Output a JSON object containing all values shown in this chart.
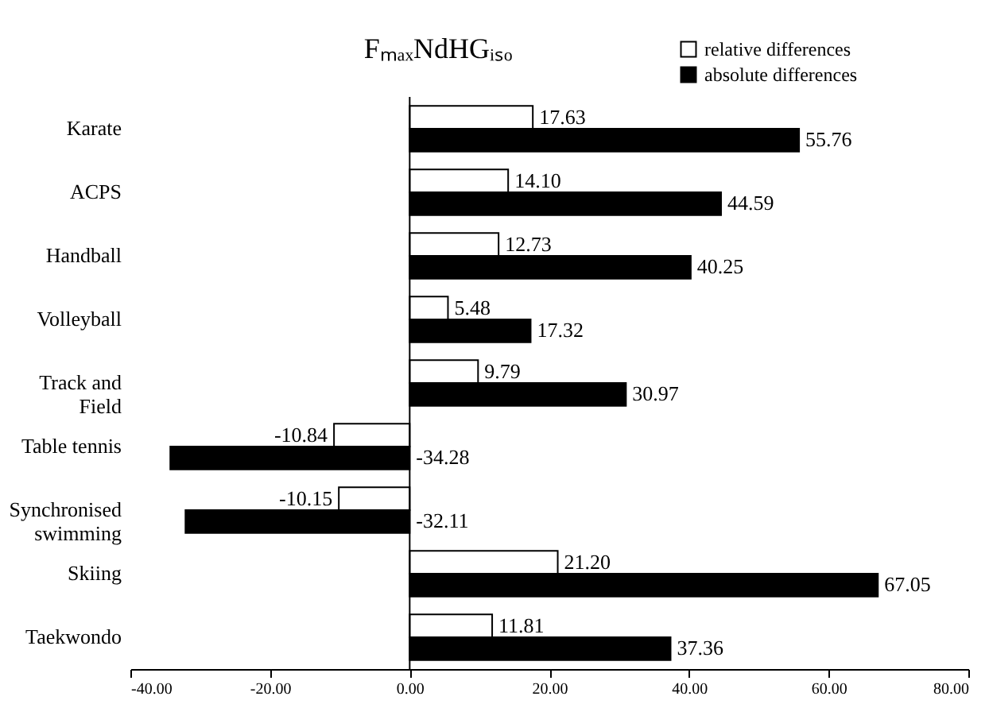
{
  "chart_data": {
    "type": "bar",
    "orientation": "horizontal",
    "title": "FₘₐₓNdHGᵢₛₒ",
    "categories": [
      "Karate",
      "ACPS",
      "Handball",
      "Volleyball",
      "Track and Field",
      "Table tennis",
      "Synchronised swimming",
      "Skiing",
      "Taekwondo"
    ],
    "series": [
      {
        "name": "relative differences",
        "color": "#ffffff",
        "values": [
          17.63,
          14.1,
          12.73,
          5.48,
          9.79,
          -10.84,
          -10.15,
          21.2,
          11.81
        ],
        "value_labels": [
          "17.63",
          "14.10",
          "12.73",
          "5.48",
          "9.79",
          "-10.84",
          "-10.15",
          "21.20",
          "11.81"
        ]
      },
      {
        "name": "absolute differences",
        "color": "#000000",
        "values": [
          55.76,
          44.59,
          40.25,
          17.32,
          30.97,
          -34.28,
          -32.11,
          67.05,
          37.36
        ],
        "value_labels": [
          "55.76",
          "44.59",
          "40.25",
          "17.32",
          "30.97",
          "-34.28",
          "-32.11",
          "67.05",
          "37.36"
        ]
      }
    ],
    "xlim": [
      -40,
      80
    ],
    "xticks": [
      {
        "value": -40,
        "label": "-40.00"
      },
      {
        "value": -20,
        "label": "-20.00"
      },
      {
        "value": 0,
        "label": "0.00"
      },
      {
        "value": 20,
        "label": "20.00"
      },
      {
        "value": 40,
        "label": "40.00"
      },
      {
        "value": 60,
        "label": "60.00"
      },
      {
        "value": 80,
        "label": "80.00"
      }
    ],
    "ref_lines": [
      {
        "axis": "x",
        "value": 0,
        "color": "#000000"
      }
    ],
    "grid": false,
    "legend": "top right"
  }
}
